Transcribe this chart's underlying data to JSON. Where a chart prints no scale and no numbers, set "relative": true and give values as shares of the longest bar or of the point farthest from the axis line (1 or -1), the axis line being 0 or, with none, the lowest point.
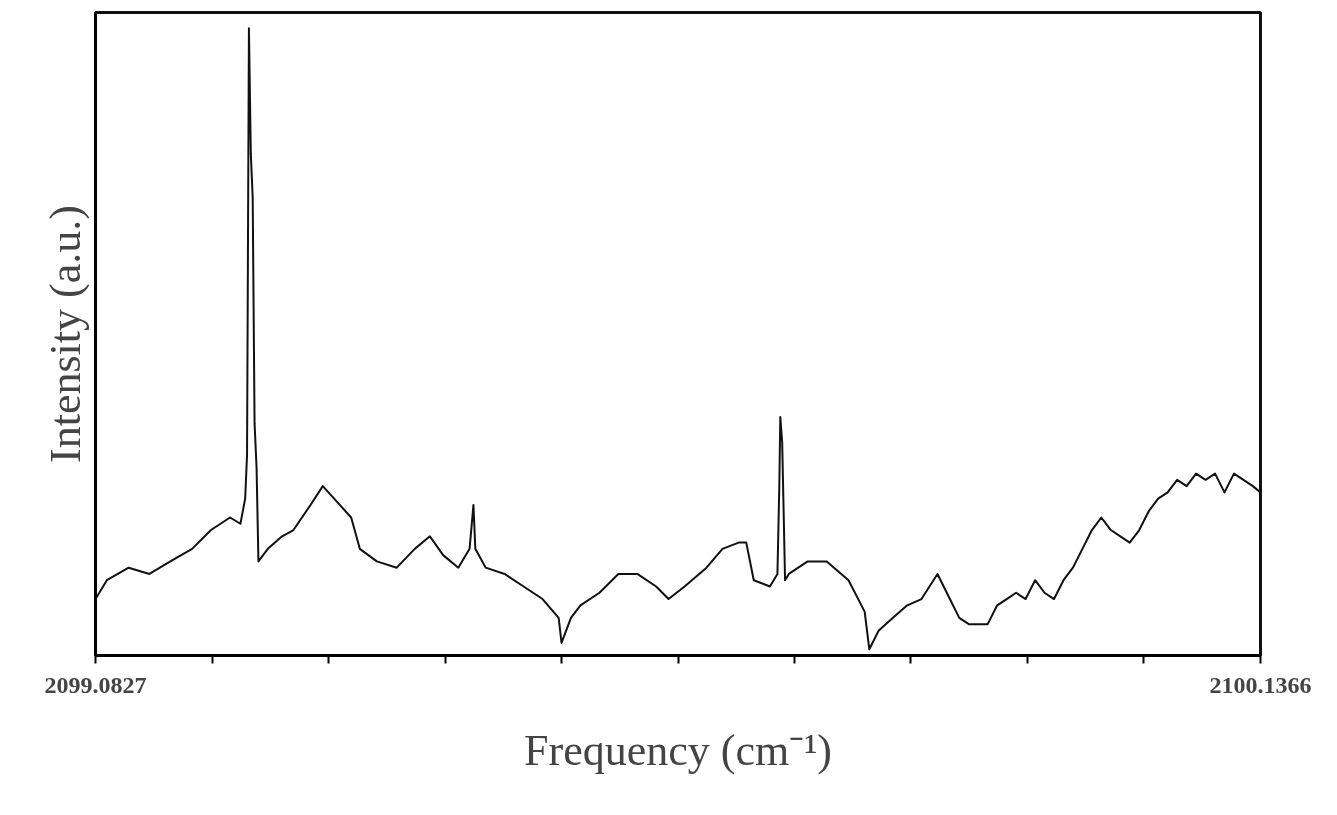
{
  "chart_data": {
    "type": "line",
    "relative": true,
    "xlabel": "Frequency (cm⁻¹)",
    "ylabel": "Intensity (a.u.)",
    "xlim": [
      2099.0827,
      2100.1366
    ],
    "xticks": [
      {
        "value": 2099.0827,
        "label": "2099.0827"
      },
      {
        "value": 2099.1881,
        "label": null
      },
      {
        "value": 2099.2935,
        "label": null
      },
      {
        "value": 2099.3989,
        "label": null
      },
      {
        "value": 2099.5043,
        "label": null
      },
      {
        "value": 2099.6097,
        "label": null
      },
      {
        "value": 2099.715,
        "label": null
      },
      {
        "value": 2099.8204,
        "label": null
      },
      {
        "value": 2099.9258,
        "label": null
      },
      {
        "value": 2100.0312,
        "label": null
      },
      {
        "value": 2100.1366,
        "label": "2100.1366"
      }
    ],
    "tick_labels": "x",
    "grid": false,
    "marker": "none",
    "line_style": "solid",
    "series": [
      {
        "color": "#111111",
        "x": [
          2099.0827,
          2099.093,
          2099.1127,
          2099.1315,
          2099.1504,
          2099.1701,
          2099.1872,
          2099.2044,
          2099.2138,
          2099.2181,
          2099.2198,
          2099.2215,
          2099.2232,
          2099.2249,
          2099.2266,
          2099.2284,
          2099.2301,
          2099.2386,
          2099.2515,
          2099.2618,
          2099.2772,
          2099.2883,
          2099.2986,
          2099.314,
          2099.3218,
          2099.3372,
          2099.3552,
          2099.3715,
          2099.3852,
          2099.3972,
          2099.4109,
          2099.4211,
          2099.4246,
          2099.4263,
          2099.4357,
          2099.4528,
          2099.47,
          2099.4871,
          2099.5017,
          2099.5043,
          2099.5128,
          2099.5214,
          2099.5386,
          2099.5557,
          2099.5728,
          2099.5899,
          2099.6011,
          2099.6156,
          2099.6354,
          2099.6499,
          2099.6645,
          2099.6714,
          2099.6782,
          2099.6928,
          2099.6996,
          2099.7013,
          2099.7022,
          2099.7039,
          2099.7065,
          2099.7099,
          2099.727,
          2099.7442,
          2099.7639,
          2099.7785,
          2099.7827,
          2099.7913,
          2099.8041,
          2099.817,
          2099.8299,
          2099.8444,
          2099.8556,
          2099.8641,
          2099.8727,
          2099.8813,
          2099.8898,
          2099.8984,
          2099.907,
          2099.9155,
          2099.9241,
          2099.9327,
          2099.9412,
          2099.9498,
          2099.9584,
          2099.9669,
          2099.9755,
          2099.9841,
          2099.9926,
          2100.0012,
          2100.0098,
          2100.0183,
          2100.0269,
          2100.0355,
          2100.044,
          2100.0526,
          2100.0612,
          2100.0698,
          2100.0783,
          2100.0869,
          2100.0955,
          2100.104,
          2100.1126,
          2100.1212,
          2100.1297,
          2100.1366
        ],
        "values": [
          0.09,
          0.12,
          0.14,
          0.13,
          0.15,
          0.17,
          0.2,
          0.22,
          0.21,
          0.25,
          0.32,
          1.0,
          0.8,
          0.73,
          0.37,
          0.3,
          0.15,
          0.17,
          0.19,
          0.2,
          0.24,
          0.27,
          0.25,
          0.22,
          0.17,
          0.15,
          0.14,
          0.17,
          0.19,
          0.16,
          0.14,
          0.17,
          0.24,
          0.17,
          0.14,
          0.13,
          0.11,
          0.09,
          0.06,
          0.02,
          0.06,
          0.08,
          0.1,
          0.13,
          0.13,
          0.11,
          0.09,
          0.11,
          0.14,
          0.17,
          0.18,
          0.18,
          0.12,
          0.11,
          0.13,
          0.27,
          0.38,
          0.34,
          0.12,
          0.13,
          0.15,
          0.15,
          0.12,
          0.07,
          0.01,
          0.04,
          0.06,
          0.08,
          0.09,
          0.13,
          0.09,
          0.06,
          0.05,
          0.05,
          0.05,
          0.08,
          0.09,
          0.1,
          0.09,
          0.12,
          0.1,
          0.09,
          0.12,
          0.14,
          0.17,
          0.2,
          0.22,
          0.2,
          0.19,
          0.18,
          0.2,
          0.23,
          0.25,
          0.26,
          0.28,
          0.27,
          0.29,
          0.28,
          0.29,
          0.26,
          0.29,
          0.28,
          0.27,
          0.26
        ]
      }
    ]
  }
}
